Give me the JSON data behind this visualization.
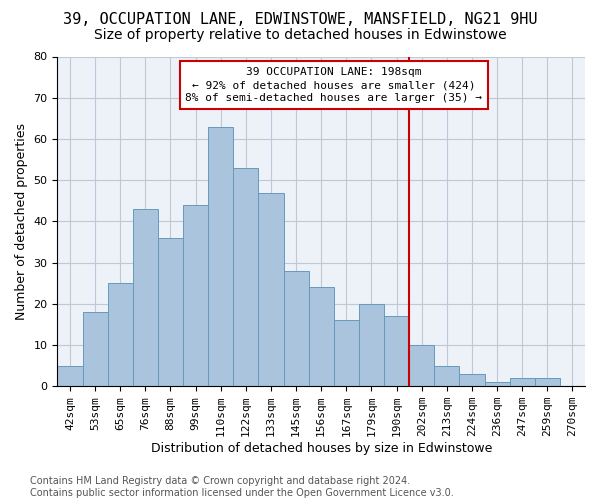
{
  "title_line1": "39, OCCUPATION LANE, EDWINSTOWE, MANSFIELD, NG21 9HU",
  "title_line2": "Size of property relative to detached houses in Edwinstowe",
  "xlabel": "Distribution of detached houses by size in Edwinstowe",
  "ylabel": "Number of detached properties",
  "footer_line1": "Contains HM Land Registry data © Crown copyright and database right 2024.",
  "footer_line2": "Contains public sector information licensed under the Open Government Licence v3.0.",
  "bar_labels": [
    "42sqm",
    "53sqm",
    "65sqm",
    "76sqm",
    "88sqm",
    "99sqm",
    "110sqm",
    "122sqm",
    "133sqm",
    "145sqm",
    "156sqm",
    "167sqm",
    "179sqm",
    "190sqm",
    "202sqm",
    "213sqm",
    "224sqm",
    "236sqm",
    "247sqm",
    "259sqm",
    "270sqm"
  ],
  "bar_values": [
    5,
    18,
    25,
    43,
    36,
    44,
    63,
    53,
    47,
    28,
    24,
    16,
    20,
    17,
    10,
    5,
    3,
    1,
    2,
    2,
    0
  ],
  "bar_color": "#aac4de",
  "bar_edgecolor": "#6699bb",
  "vline_x": 13.5,
  "annotation_text": "39 OCCUPATION LANE: 198sqm\n← 92% of detached houses are smaller (424)\n8% of semi-detached houses are larger (35) →",
  "annotation_box_edgecolor": "#cc0000",
  "annotation_box_facecolor": "#ffffff",
  "vline_color": "#cc0000",
  "ylim": [
    0,
    80
  ],
  "yticks": [
    0,
    10,
    20,
    30,
    40,
    50,
    60,
    70,
    80
  ],
  "grid_color": "#c0c8d8",
  "background_color": "#edf2f8",
  "title1_fontsize": 11,
  "title2_fontsize": 10,
  "axis_label_fontsize": 9,
  "tick_fontsize": 8,
  "annotation_fontsize": 8,
  "footer_fontsize": 7
}
